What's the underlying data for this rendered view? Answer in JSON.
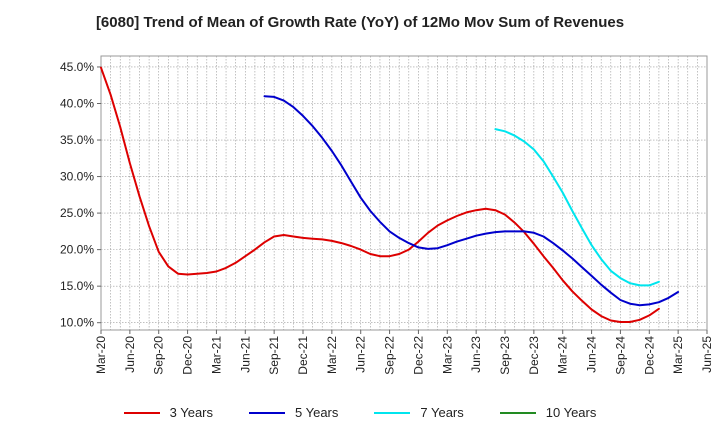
{
  "chart_data": {
    "type": "line",
    "title": "[6080]  Trend of Mean of Growth Rate (YoY) of 12Mo Mov Sum of Revenues",
    "xlabel": "",
    "ylabel": "",
    "ylim": [
      9.0,
      46.5
    ],
    "yticks": [
      10,
      15,
      20,
      25,
      30,
      35,
      40,
      45
    ],
    "ytick_labels": [
      "10.0%",
      "15.0%",
      "20.0%",
      "25.0%",
      "30.0%",
      "35.0%",
      "40.0%",
      "45.0%"
    ],
    "x_start": "Mar-20",
    "x_end": "Jun-25",
    "xtick_labels": [
      "Mar-20",
      "Jun-20",
      "Sep-20",
      "Dec-20",
      "Mar-21",
      "Jun-21",
      "Sep-21",
      "Dec-21",
      "Mar-22",
      "Jun-22",
      "Sep-22",
      "Dec-22",
      "Mar-23",
      "Jun-23",
      "Sep-23",
      "Dec-23",
      "Mar-24",
      "Jun-24",
      "Sep-24",
      "Dec-24",
      "Mar-25",
      "Jun-25"
    ],
    "grid": true,
    "legend_position": "bottom",
    "series": [
      {
        "name": "3 Years",
        "color": "#dd0000",
        "start": "Mar-20",
        "values": [
          44.9,
          41.2,
          36.8,
          31.8,
          27.3,
          23.2,
          19.7,
          17.7,
          16.7,
          16.6,
          16.7,
          16.8,
          17.0,
          17.5,
          18.2,
          19.1,
          20.0,
          21.0,
          21.8,
          22.0,
          21.8,
          21.6,
          21.5,
          21.4,
          21.2,
          20.9,
          20.5,
          20.0,
          19.4,
          19.1,
          19.1,
          19.4,
          20.0,
          21.1,
          22.3,
          23.3,
          24.0,
          24.6,
          25.1,
          25.4,
          25.6,
          25.4,
          24.8,
          23.7,
          22.4,
          20.8,
          19.1,
          17.5,
          15.8,
          14.3,
          13.0,
          11.8,
          10.9,
          10.3,
          10.1,
          10.1,
          10.4,
          11.0,
          11.9
        ]
      },
      {
        "name": "5 Years",
        "color": "#0000cc",
        "start": "Aug-21",
        "values": [
          41.0,
          40.9,
          40.4,
          39.5,
          38.3,
          36.9,
          35.3,
          33.5,
          31.5,
          29.3,
          27.1,
          25.3,
          23.8,
          22.5,
          21.6,
          20.9,
          20.3,
          20.1,
          20.2,
          20.6,
          21.1,
          21.5,
          21.9,
          22.2,
          22.4,
          22.5,
          22.5,
          22.5,
          22.3,
          21.8,
          20.9,
          19.9,
          18.8,
          17.6,
          16.4,
          15.2,
          14.1,
          13.1,
          12.6,
          12.4,
          12.5,
          12.8,
          13.4,
          14.2
        ]
      },
      {
        "name": "7 Years",
        "color": "#00e5ee",
        "start": "Aug-23",
        "values": [
          36.5,
          36.2,
          35.6,
          34.8,
          33.7,
          32.1,
          30.0,
          27.8,
          25.3,
          22.9,
          20.6,
          18.7,
          17.1,
          16.1,
          15.4,
          15.1,
          15.1,
          15.6
        ]
      },
      {
        "name": "10 Years",
        "color": "#228b22",
        "start": "Mar-25",
        "values": []
      }
    ]
  }
}
